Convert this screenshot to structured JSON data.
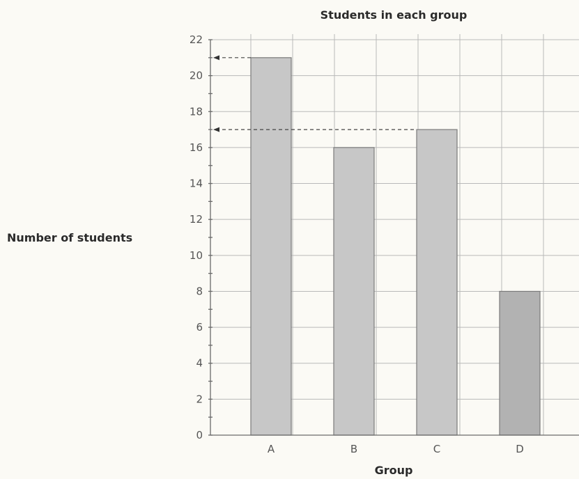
{
  "chart_data": {
    "type": "bar",
    "title": "Students in each group",
    "xlabel": "Group",
    "ylabel": "Number of students",
    "categories": [
      "A",
      "B",
      "C",
      "D"
    ],
    "values": [
      21,
      16,
      17,
      8
    ],
    "ylim": [
      0,
      22
    ],
    "yticks": [
      0,
      2,
      4,
      6,
      8,
      10,
      12,
      14,
      16,
      18,
      20,
      22
    ],
    "grid": true,
    "legend": "none",
    "bar_color": "#c7c7c7",
    "bar_color_dark": "#b2b2b2",
    "guide_lines": [
      {
        "category": "A",
        "value": 21
      },
      {
        "category": "C",
        "value": 17
      }
    ]
  }
}
